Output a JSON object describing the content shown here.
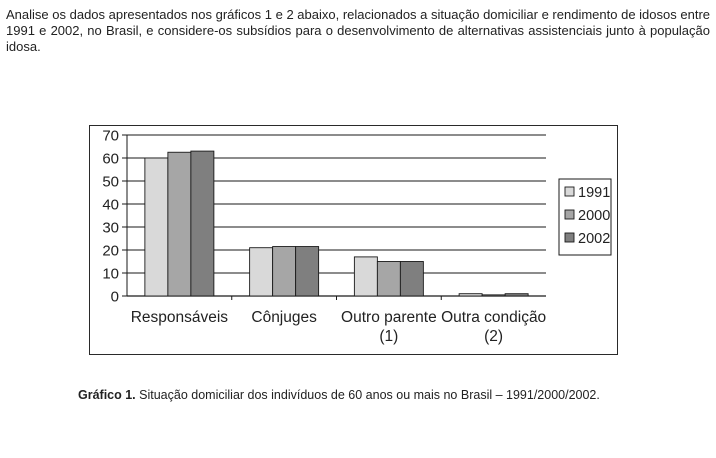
{
  "intro_text": "Analise os dados apresentados nos gráficos 1 e 2 abaixo, relacionados a situação domiciliar e rendimento de idosos entre 1991 e 2002, no Brasil, e considere-os subsídios para o desenvolvimento de alternativas assistenciais junto à população idosa.",
  "caption": {
    "label": "Gráfico 1.",
    "text": " Situação domiciliar dos indivíduos de 60 anos ou mais no Brasil – 1991/2000/2002."
  },
  "chart_data": {
    "type": "bar",
    "title": "",
    "xlabel": "",
    "ylabel": "",
    "ylim": [
      0,
      70
    ],
    "yticks": [
      "0",
      "10",
      "20",
      "30",
      "40",
      "50",
      "60",
      "70"
    ],
    "grid": true,
    "legend_position": "right",
    "categories": [
      [
        "Responsáveis"
      ],
      [
        "Cônjuges"
      ],
      [
        "Outro parente",
        "(1)"
      ],
      [
        "Outra condição",
        "(2)"
      ]
    ],
    "series": [
      {
        "name": "1991",
        "color": "#d9d9d9",
        "values": [
          60,
          21,
          17,
          1
        ]
      },
      {
        "name": "2000",
        "color": "#a6a6a6",
        "values": [
          62.5,
          21.5,
          15,
          0.5
        ]
      },
      {
        "name": "2002",
        "color": "#7f7f7f",
        "values": [
          63,
          21.5,
          15,
          1
        ]
      }
    ]
  }
}
